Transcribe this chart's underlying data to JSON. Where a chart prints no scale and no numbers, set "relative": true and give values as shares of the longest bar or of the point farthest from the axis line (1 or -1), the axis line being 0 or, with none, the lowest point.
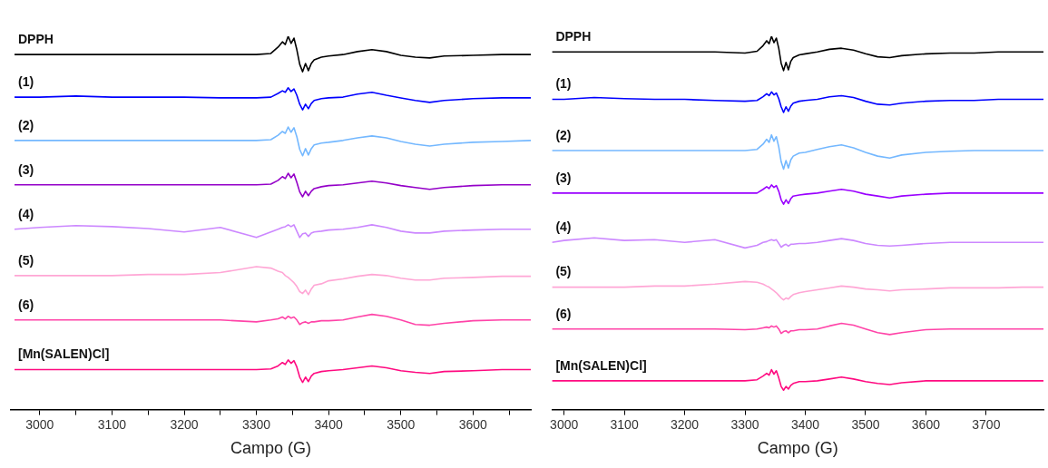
{
  "chart_data": [
    {
      "type": "line",
      "xlabel": "Campo (G)",
      "relative": true,
      "xlim": [
        2960,
        3680
      ],
      "xticks": [
        3000,
        {
          "value": 3050,
          "label": null
        },
        3100,
        {
          "value": 3150,
          "label": null
        },
        3200,
        {
          "value": 3250,
          "label": null
        },
        3300,
        {
          "value": 3350,
          "label": null
        },
        3400,
        {
          "value": 3450,
          "label": null
        },
        3500,
        {
          "value": 3550,
          "label": null
        },
        3600,
        {
          "value": 3650,
          "label": null
        }
      ],
      "x": [
        2965,
        3000,
        3050,
        3100,
        3150,
        3200,
        3250,
        3300,
        3320,
        3330,
        3336,
        3340,
        3344,
        3348,
        3352,
        3356,
        3360,
        3364,
        3368,
        3372,
        3376,
        3380,
        3390,
        3400,
        3420,
        3440,
        3460,
        3480,
        3500,
        3520,
        3540,
        3560,
        3600,
        3640,
        3680
      ],
      "series": [
        {
          "name": "DPPH",
          "color": "#000000",
          "values": [
            0.951,
            0.951,
            0.951,
            0.951,
            0.951,
            0.951,
            0.951,
            0.951,
            0.954,
            0.971,
            0.985,
            0.978,
            1,
            0.981,
            0.995,
            0.964,
            0.925,
            0.905,
            0.927,
            0.908,
            0.927,
            0.937,
            0.944,
            0.947,
            0.951,
            0.959,
            0.964,
            0.959,
            0.949,
            0.944,
            0.942,
            0.947,
            0.949,
            0.951,
            0.951
          ]
        },
        {
          "name": "(1)",
          "color": "#0000ff",
          "values": [
            0.837,
            0.837,
            0.84,
            0.837,
            0.837,
            0.837,
            0.835,
            0.835,
            0.837,
            0.847,
            0.854,
            0.85,
            0.862,
            0.852,
            0.859,
            0.842,
            0.818,
            0.803,
            0.818,
            0.806,
            0.82,
            0.828,
            0.833,
            0.835,
            0.837,
            0.845,
            0.85,
            0.842,
            0.835,
            0.828,
            0.823,
            0.828,
            0.833,
            0.835,
            0.835
          ]
        },
        {
          "name": "(2)",
          "color": "#74b8ff",
          "values": [
            0.721,
            0.721,
            0.721,
            0.721,
            0.721,
            0.721,
            0.721,
            0.721,
            0.723,
            0.735,
            0.745,
            0.74,
            0.757,
            0.743,
            0.755,
            0.731,
            0.697,
            0.68,
            0.699,
            0.682,
            0.699,
            0.709,
            0.714,
            0.716,
            0.721,
            0.728,
            0.733,
            0.728,
            0.718,
            0.711,
            0.706,
            0.711,
            0.716,
            0.718,
            0.721
          ]
        },
        {
          "name": "(3)",
          "color": "#9400c8",
          "values": [
            0.602,
            0.602,
            0.602,
            0.602,
            0.602,
            0.602,
            0.602,
            0.602,
            0.604,
            0.614,
            0.624,
            0.619,
            0.633,
            0.621,
            0.631,
            0.609,
            0.583,
            0.57,
            0.585,
            0.573,
            0.585,
            0.592,
            0.597,
            0.6,
            0.602,
            0.607,
            0.612,
            0.607,
            0.6,
            0.595,
            0.59,
            0.595,
            0.6,
            0.602,
            0.602
          ]
        },
        {
          "name": "(4)",
          "color": "#cc88ff",
          "values": [
            0.483,
            0.488,
            0.493,
            0.49,
            0.485,
            0.476,
            0.488,
            0.461,
            0.476,
            0.483,
            0.488,
            0.49,
            0.495,
            0.49,
            0.495,
            0.478,
            0.461,
            0.471,
            0.473,
            0.464,
            0.473,
            0.476,
            0.478,
            0.481,
            0.483,
            0.488,
            0.495,
            0.488,
            0.478,
            0.473,
            0.473,
            0.478,
            0.481,
            0.483,
            0.483
          ]
        },
        {
          "name": "(5)",
          "color": "#ffa6d5",
          "values": [
            0.359,
            0.359,
            0.359,
            0.359,
            0.362,
            0.362,
            0.367,
            0.383,
            0.379,
            0.371,
            0.367,
            0.359,
            0.354,
            0.347,
            0.34,
            0.33,
            0.316,
            0.311,
            0.32,
            0.308,
            0.323,
            0.333,
            0.337,
            0.345,
            0.35,
            0.357,
            0.362,
            0.359,
            0.352,
            0.347,
            0.347,
            0.352,
            0.354,
            0.357,
            0.357
          ]
        },
        {
          "name": "(6)",
          "color": "#ff44a8",
          "values": [
            0.24,
            0.24,
            0.24,
            0.24,
            0.24,
            0.24,
            0.24,
            0.235,
            0.24,
            0.243,
            0.248,
            0.243,
            0.25,
            0.245,
            0.248,
            0.24,
            0.228,
            0.233,
            0.235,
            0.231,
            0.235,
            0.235,
            0.238,
            0.238,
            0.24,
            0.248,
            0.255,
            0.25,
            0.24,
            0.228,
            0.226,
            0.231,
            0.238,
            0.24,
            0.24
          ]
        },
        {
          "name": "[Mn(SALEN)Cl]",
          "color": "#ff0a80",
          "values": [
            0.107,
            0.107,
            0.107,
            0.107,
            0.107,
            0.107,
            0.107,
            0.107,
            0.109,
            0.117,
            0.126,
            0.121,
            0.133,
            0.124,
            0.131,
            0.114,
            0.087,
            0.073,
            0.087,
            0.075,
            0.09,
            0.097,
            0.102,
            0.104,
            0.107,
            0.112,
            0.117,
            0.112,
            0.104,
            0.1,
            0.097,
            0.102,
            0.104,
            0.107,
            0.107
          ]
        }
      ]
    },
    {
      "type": "line",
      "xlabel": "Campo (G)",
      "relative": true,
      "xlim": [
        2980,
        3795
      ],
      "xticks": [
        3000,
        3100,
        3200,
        3300,
        3400,
        3500,
        3600,
        3700
      ],
      "x": [
        2980,
        3000,
        3050,
        3100,
        3150,
        3200,
        3250,
        3300,
        3320,
        3330,
        3336,
        3340,
        3344,
        3348,
        3352,
        3356,
        3360,
        3364,
        3368,
        3372,
        3376,
        3380,
        3390,
        3400,
        3420,
        3440,
        3460,
        3480,
        3500,
        3520,
        3540,
        3560,
        3600,
        3640,
        3680,
        3720,
        3760,
        3795
      ],
      "series": [
        {
          "name": "DPPH",
          "color": "#000000",
          "values": [
            0.958,
            0.958,
            0.958,
            0.958,
            0.958,
            0.958,
            0.958,
            0.955,
            0.96,
            0.975,
            0.988,
            0.98,
            1,
            0.983,
            0.995,
            0.968,
            0.928,
            0.908,
            0.93,
            0.91,
            0.933,
            0.943,
            0.95,
            0.953,
            0.958,
            0.965,
            0.968,
            0.963,
            0.953,
            0.945,
            0.943,
            0.948,
            0.953,
            0.955,
            0.955,
            0.958,
            0.958,
            0.958
          ]
        },
        {
          "name": "(1)",
          "color": "#0000ff",
          "values": [
            0.831,
            0.831,
            0.836,
            0.833,
            0.831,
            0.831,
            0.828,
            0.826,
            0.828,
            0.838,
            0.846,
            0.841,
            0.851,
            0.843,
            0.848,
            0.833,
            0.811,
            0.796,
            0.811,
            0.799,
            0.813,
            0.821,
            0.826,
            0.828,
            0.831,
            0.838,
            0.841,
            0.836,
            0.826,
            0.818,
            0.816,
            0.821,
            0.826,
            0.828,
            0.828,
            0.831,
            0.831,
            0.831
          ]
        },
        {
          "name": "(2)",
          "color": "#74b8ff",
          "values": [
            0.694,
            0.694,
            0.694,
            0.694,
            0.694,
            0.694,
            0.694,
            0.694,
            0.697,
            0.711,
            0.724,
            0.716,
            0.736,
            0.719,
            0.731,
            0.704,
            0.664,
            0.644,
            0.667,
            0.647,
            0.669,
            0.679,
            0.687,
            0.689,
            0.697,
            0.704,
            0.709,
            0.701,
            0.689,
            0.679,
            0.674,
            0.682,
            0.689,
            0.692,
            0.694,
            0.694,
            0.694,
            0.694
          ]
        },
        {
          "name": "(3)",
          "color": "#9a00ff",
          "values": [
            0.58,
            0.58,
            0.58,
            0.58,
            0.58,
            0.58,
            0.58,
            0.58,
            0.58,
            0.59,
            0.597,
            0.592,
            0.602,
            0.595,
            0.6,
            0.585,
            0.562,
            0.55,
            0.562,
            0.552,
            0.565,
            0.572,
            0.575,
            0.577,
            0.58,
            0.585,
            0.59,
            0.585,
            0.577,
            0.572,
            0.567,
            0.572,
            0.577,
            0.58,
            0.58,
            0.58,
            0.58,
            0.58
          ]
        },
        {
          "name": "(4)",
          "color": "#cc88ff",
          "values": [
            0.448,
            0.453,
            0.46,
            0.453,
            0.455,
            0.448,
            0.455,
            0.433,
            0.44,
            0.448,
            0.45,
            0.453,
            0.455,
            0.453,
            0.455,
            0.445,
            0.435,
            0.44,
            0.443,
            0.438,
            0.443,
            0.443,
            0.445,
            0.445,
            0.448,
            0.453,
            0.458,
            0.453,
            0.445,
            0.44,
            0.438,
            0.44,
            0.445,
            0.448,
            0.448,
            0.448,
            0.448,
            0.448
          ]
        },
        {
          "name": "(5)",
          "color": "#ffa6d5",
          "values": [
            0.328,
            0.328,
            0.328,
            0.328,
            0.331,
            0.331,
            0.336,
            0.343,
            0.341,
            0.336,
            0.331,
            0.328,
            0.323,
            0.318,
            0.313,
            0.306,
            0.299,
            0.294,
            0.299,
            0.296,
            0.303,
            0.308,
            0.313,
            0.316,
            0.321,
            0.326,
            0.331,
            0.328,
            0.323,
            0.321,
            0.318,
            0.321,
            0.323,
            0.326,
            0.326,
            0.326,
            0.328,
            0.328
          ]
        },
        {
          "name": "(6)",
          "color": "#ff44a8",
          "values": [
            0.216,
            0.216,
            0.216,
            0.216,
            0.216,
            0.216,
            0.216,
            0.214,
            0.216,
            0.219,
            0.221,
            0.219,
            0.224,
            0.221,
            0.224,
            0.216,
            0.204,
            0.209,
            0.211,
            0.206,
            0.211,
            0.211,
            0.214,
            0.214,
            0.216,
            0.224,
            0.231,
            0.226,
            0.216,
            0.206,
            0.201,
            0.206,
            0.214,
            0.216,
            0.216,
            0.216,
            0.216,
            0.216
          ]
        },
        {
          "name": "[Mn(SALEN)Cl]",
          "color": "#ff0a80",
          "values": [
            0.077,
            0.077,
            0.077,
            0.077,
            0.077,
            0.077,
            0.077,
            0.077,
            0.08,
            0.09,
            0.097,
            0.092,
            0.107,
            0.095,
            0.104,
            0.085,
            0.062,
            0.052,
            0.062,
            0.055,
            0.065,
            0.07,
            0.075,
            0.075,
            0.077,
            0.082,
            0.087,
            0.082,
            0.075,
            0.07,
            0.067,
            0.072,
            0.077,
            0.077,
            0.077,
            0.077,
            0.077,
            0.077
          ]
        }
      ]
    }
  ]
}
